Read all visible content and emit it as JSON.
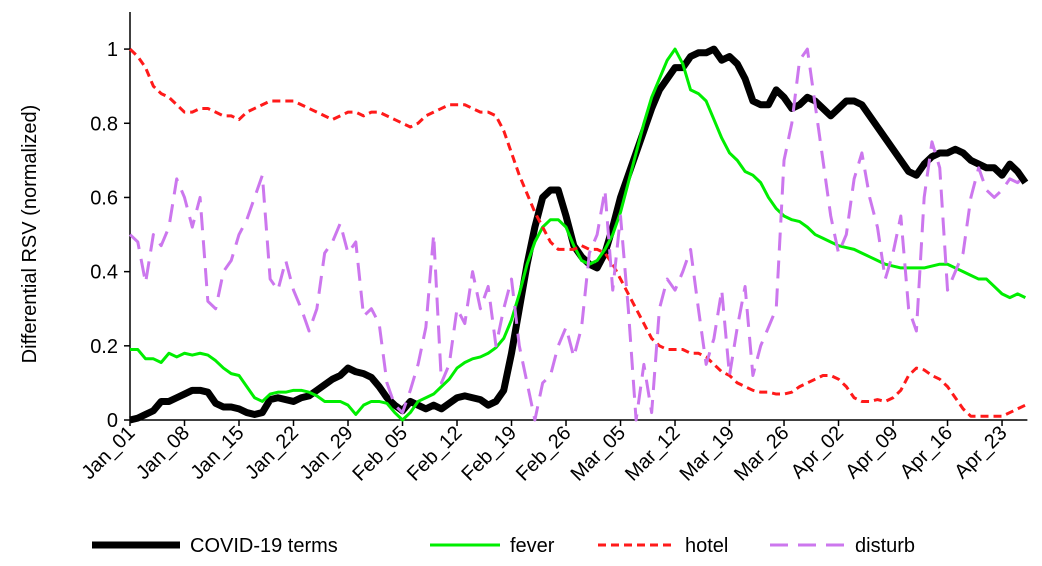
{
  "chart_data": {
    "type": "line",
    "y_label": "Differential RSV (normalized)",
    "categories": [
      "Jan_01",
      null,
      null,
      null,
      null,
      null,
      null,
      "Jan_08",
      null,
      null,
      null,
      null,
      null,
      null,
      "Jan_15",
      null,
      null,
      null,
      null,
      null,
      null,
      "Jan_22",
      null,
      null,
      null,
      null,
      null,
      null,
      "Jan_29",
      null,
      null,
      null,
      null,
      null,
      null,
      "Feb_05",
      null,
      null,
      null,
      null,
      null,
      null,
      "Feb_12",
      null,
      null,
      null,
      null,
      null,
      null,
      "Feb_19",
      null,
      null,
      null,
      null,
      null,
      null,
      "Feb_26",
      null,
      null,
      null,
      null,
      null,
      null,
      "Mar_05",
      null,
      null,
      null,
      null,
      null,
      null,
      "Mar_12",
      null,
      null,
      null,
      null,
      null,
      null,
      "Mar_19",
      null,
      null,
      null,
      null,
      null,
      null,
      "Mar_26",
      null,
      null,
      null,
      null,
      null,
      null,
      "Apr_02",
      null,
      null,
      null,
      null,
      null,
      null,
      "Apr_09",
      null,
      null,
      null,
      null,
      null,
      null,
      "Apr_16",
      null,
      null,
      null,
      null,
      null,
      null,
      "Apr_23",
      null,
      null,
      null
    ],
    "ylim": [
      0,
      1.1
    ],
    "yticks": [
      0,
      0.2,
      0.4,
      0.6,
      0.8,
      1
    ],
    "grid": false,
    "legend": "bottom",
    "series": [
      {
        "name": "COVID-19 terms",
        "color": "#000000",
        "line_width": 7,
        "dash": "none",
        "values": [
          0,
          0.005,
          0.015,
          0.025,
          0.05,
          0.05,
          0.06,
          0.07,
          0.08,
          0.08,
          0.075,
          0.045,
          0.035,
          0.035,
          0.03,
          0.02,
          0.015,
          0.02,
          0.055,
          0.06,
          0.055,
          0.05,
          0.06,
          0.065,
          0.08,
          0.095,
          0.11,
          0.12,
          0.14,
          0.13,
          0.125,
          0.115,
          0.09,
          0.06,
          0.04,
          0.025,
          0.05,
          0.04,
          0.03,
          0.04,
          0.03,
          0.045,
          0.06,
          0.065,
          0.06,
          0.055,
          0.04,
          0.05,
          0.08,
          0.18,
          0.3,
          0.42,
          0.52,
          0.6,
          0.62,
          0.62,
          0.55,
          0.47,
          0.44,
          0.42,
          0.41,
          0.45,
          0.52,
          0.6,
          0.66,
          0.72,
          0.78,
          0.84,
          0.89,
          0.92,
          0.95,
          0.95,
          0.98,
          0.99,
          0.99,
          1.0,
          0.97,
          0.98,
          0.96,
          0.92,
          0.86,
          0.85,
          0.85,
          0.89,
          0.87,
          0.84,
          0.85,
          0.87,
          0.86,
          0.84,
          0.82,
          0.84,
          0.86,
          0.86,
          0.85,
          0.82,
          0.79,
          0.76,
          0.73,
          0.7,
          0.67,
          0.66,
          0.69,
          0.71,
          0.72,
          0.72,
          0.73,
          0.72,
          0.7,
          0.69,
          0.68,
          0.68,
          0.66,
          0.69,
          0.67,
          0.64
        ]
      },
      {
        "name": "fever",
        "color": "#00ee00",
        "line_width": 3,
        "dash": "none",
        "values": [
          0.19,
          0.19,
          0.165,
          0.165,
          0.155,
          0.18,
          0.17,
          0.18,
          0.175,
          0.18,
          0.175,
          0.16,
          0.14,
          0.125,
          0.12,
          0.09,
          0.06,
          0.05,
          0.07,
          0.075,
          0.075,
          0.08,
          0.08,
          0.075,
          0.065,
          0.05,
          0.05,
          0.05,
          0.04,
          0.015,
          0.04,
          0.05,
          0.05,
          0.045,
          0.02,
          0.0,
          0.02,
          0.05,
          0.06,
          0.07,
          0.09,
          0.11,
          0.14,
          0.155,
          0.165,
          0.17,
          0.18,
          0.195,
          0.22,
          0.27,
          0.34,
          0.42,
          0.48,
          0.52,
          0.54,
          0.54,
          0.52,
          0.47,
          0.43,
          0.42,
          0.43,
          0.46,
          0.5,
          0.56,
          0.64,
          0.72,
          0.8,
          0.87,
          0.92,
          0.97,
          1.0,
          0.96,
          0.89,
          0.88,
          0.86,
          0.81,
          0.76,
          0.72,
          0.7,
          0.67,
          0.66,
          0.64,
          0.6,
          0.57,
          0.55,
          0.54,
          0.535,
          0.52,
          0.5,
          0.49,
          0.48,
          0.47,
          0.465,
          0.46,
          0.45,
          0.44,
          0.43,
          0.42,
          0.415,
          0.41,
          0.41,
          0.41,
          0.41,
          0.415,
          0.42,
          0.42,
          0.41,
          0.4,
          0.39,
          0.38,
          0.38,
          0.36,
          0.34,
          0.33,
          0.34,
          0.33
        ]
      },
      {
        "name": "hotel",
        "color": "#ff1a1a",
        "line_width": 3,
        "dash": "8 5",
        "values": [
          1.0,
          0.98,
          0.95,
          0.9,
          0.88,
          0.87,
          0.85,
          0.83,
          0.83,
          0.84,
          0.84,
          0.83,
          0.82,
          0.82,
          0.81,
          0.83,
          0.84,
          0.85,
          0.86,
          0.86,
          0.86,
          0.86,
          0.85,
          0.84,
          0.83,
          0.82,
          0.81,
          0.82,
          0.83,
          0.83,
          0.82,
          0.83,
          0.83,
          0.82,
          0.81,
          0.8,
          0.79,
          0.8,
          0.82,
          0.83,
          0.84,
          0.85,
          0.85,
          0.85,
          0.84,
          0.83,
          0.83,
          0.82,
          0.78,
          0.72,
          0.66,
          0.61,
          0.56,
          0.52,
          0.48,
          0.46,
          0.46,
          0.46,
          0.47,
          0.46,
          0.46,
          0.45,
          0.42,
          0.38,
          0.34,
          0.3,
          0.26,
          0.22,
          0.2,
          0.19,
          0.19,
          0.19,
          0.18,
          0.18,
          0.17,
          0.15,
          0.13,
          0.12,
          0.1,
          0.09,
          0.08,
          0.075,
          0.075,
          0.07,
          0.07,
          0.075,
          0.09,
          0.1,
          0.11,
          0.12,
          0.12,
          0.11,
          0.09,
          0.06,
          0.05,
          0.05,
          0.055,
          0.05,
          0.06,
          0.08,
          0.12,
          0.14,
          0.135,
          0.12,
          0.11,
          0.09,
          0.06,
          0.03,
          0.01,
          0.01,
          0.01,
          0.01,
          0.01,
          0.02,
          0.03,
          0.04
        ]
      },
      {
        "name": "disturb",
        "color": "#cc77ee",
        "line_width": 3,
        "dash": "18 10",
        "values": [
          0.5,
          0.48,
          0.37,
          0.5,
          0.47,
          0.52,
          0.65,
          0.6,
          0.52,
          0.6,
          0.32,
          0.3,
          0.4,
          0.43,
          0.5,
          0.54,
          0.6,
          0.66,
          0.38,
          0.35,
          0.43,
          0.35,
          0.3,
          0.24,
          0.3,
          0.45,
          0.48,
          0.53,
          0.45,
          0.48,
          0.28,
          0.3,
          0.26,
          0.1,
          0.04,
          0.02,
          0.08,
          0.15,
          0.25,
          0.5,
          0.1,
          0.15,
          0.3,
          0.26,
          0.4,
          0.3,
          0.36,
          0.2,
          0.3,
          0.38,
          0.2,
          0.1,
          0.0,
          0.1,
          0.12,
          0.2,
          0.25,
          0.17,
          0.25,
          0.45,
          0.5,
          0.62,
          0.35,
          0.55,
          0.3,
          0.0,
          0.15,
          0.02,
          0.3,
          0.38,
          0.35,
          0.4,
          0.46,
          0.3,
          0.15,
          0.22,
          0.35,
          0.12,
          0.25,
          0.36,
          0.12,
          0.2,
          0.25,
          0.3,
          0.7,
          0.8,
          0.97,
          1.0,
          0.85,
          0.7,
          0.55,
          0.45,
          0.5,
          0.65,
          0.72,
          0.6,
          0.52,
          0.38,
          0.45,
          0.55,
          0.3,
          0.24,
          0.6,
          0.75,
          0.68,
          0.35,
          0.4,
          0.45,
          0.6,
          0.68,
          0.62,
          0.6,
          0.62,
          0.65,
          0.64,
          0.66
        ]
      }
    ]
  }
}
